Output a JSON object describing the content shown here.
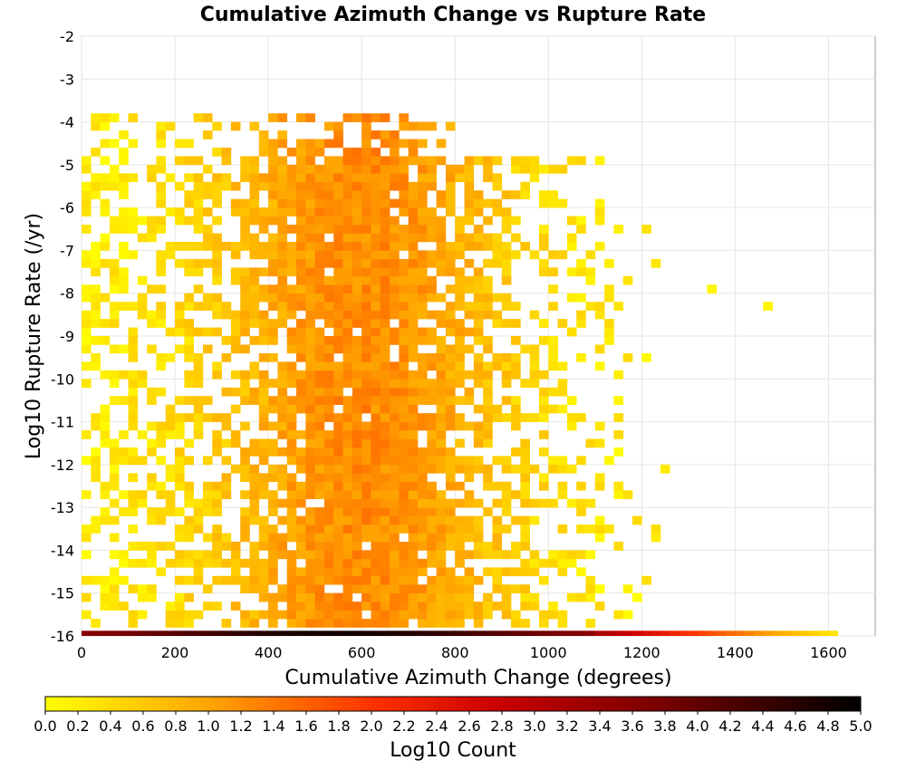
{
  "chart_data": {
    "type": "heatmap",
    "title": "Cumulative Azimuth Change vs Rupture Rate",
    "xlabel": "Cumulative Azimuth Change (degrees)",
    "ylabel": "Log10 Rupture Rate (/yr)",
    "xlim": [
      0,
      1700
    ],
    "ylim": [
      -16,
      -2
    ],
    "x_ticks": [
      0,
      200,
      400,
      600,
      800,
      1000,
      1200,
      1400,
      1600
    ],
    "y_ticks": [
      -2,
      -3,
      -4,
      -5,
      -6,
      -7,
      -8,
      -9,
      -10,
      -11,
      -12,
      -13,
      -14,
      -15,
      -16
    ],
    "x_bin_width": 20,
    "y_bin_width": 0.2,
    "grid": true,
    "colorbar": {
      "label": "Log10 Count",
      "min": 0.0,
      "max": 5.0,
      "ticks": [
        "0.0",
        "0.2",
        "0.4",
        "0.6",
        "0.8",
        "1.0",
        "1.2",
        "1.4",
        "1.6",
        "1.8",
        "2.0",
        "2.2",
        "2.4",
        "2.6",
        "2.8",
        "3.0",
        "3.2",
        "3.4",
        "3.6",
        "3.8",
        "4.0",
        "4.2",
        "4.4",
        "4.6",
        "4.8",
        "5.0"
      ],
      "colors": [
        "#ffff00",
        "#ffa500",
        "#ff3300",
        "#cc0000",
        "#7a0000",
        "#000000"
      ]
    },
    "cell_value_range": [
      0.0,
      4.8
    ],
    "density_summary": {
      "main_mass_x": [
        300,
        900
      ],
      "main_mass_y": [
        -15.5,
        -5
      ],
      "typical_log10_count_in_core": 0.9,
      "bottom_row_y": -16,
      "bottom_row_x_extent": [
        0,
        1620
      ],
      "bottom_row_log10_count_peak": 4.8,
      "outliers": [
        {
          "x": 1340,
          "y": -8
        },
        {
          "x": 1470,
          "y": -8.3
        }
      ]
    }
  }
}
